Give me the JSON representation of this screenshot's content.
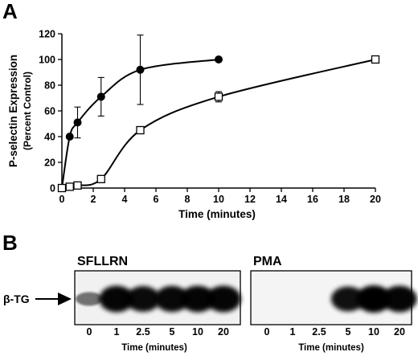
{
  "panel_a_label": "A",
  "panel_b_label": "B",
  "chart_data": [
    {
      "type": "line",
      "ylabel": "P-selectin Expression",
      "ylabel_sub": "(Percent Control)",
      "xlabel": "Time (minutes)",
      "xlim": [
        0,
        20
      ],
      "ylim": [
        0,
        120
      ],
      "x_ticks": [
        0,
        2,
        4,
        6,
        8,
        10,
        12,
        14,
        16,
        18,
        20
      ],
      "y_ticks": [
        0,
        20,
        40,
        60,
        80,
        100,
        120
      ],
      "grid": false,
      "series": [
        {
          "marker": "filled-circle",
          "color": "#000000",
          "x": [
            0,
            0.5,
            1,
            2.5,
            5,
            10
          ],
          "y": [
            0,
            40,
            51,
            71,
            92,
            100
          ],
          "err": [
            0,
            0,
            12,
            15,
            27,
            0
          ]
        },
        {
          "marker": "open-square",
          "color": "#000000",
          "x": [
            0,
            0.5,
            1,
            2.5,
            5,
            10,
            20
          ],
          "y": [
            0,
            1,
            2,
            7,
            45,
            71,
            100
          ],
          "err": [
            0,
            0,
            0,
            0,
            0,
            4,
            0
          ]
        }
      ]
    }
  ],
  "blot": {
    "band_label": "β-TG",
    "xlabel": "Time (minutes)",
    "panels": [
      {
        "title": "SFLLRN",
        "lanes": [
          "0",
          "1",
          "2.5",
          "5",
          "10",
          "20"
        ],
        "band_intensity": [
          0.15,
          0.95,
          0.9,
          0.92,
          0.95,
          0.95
        ]
      },
      {
        "title": "PMA",
        "lanes": [
          "0",
          "1",
          "2.5",
          "5",
          "10",
          "20"
        ],
        "band_intensity": [
          0,
          0,
          0,
          0.85,
          1.0,
          0.95
        ]
      }
    ]
  }
}
